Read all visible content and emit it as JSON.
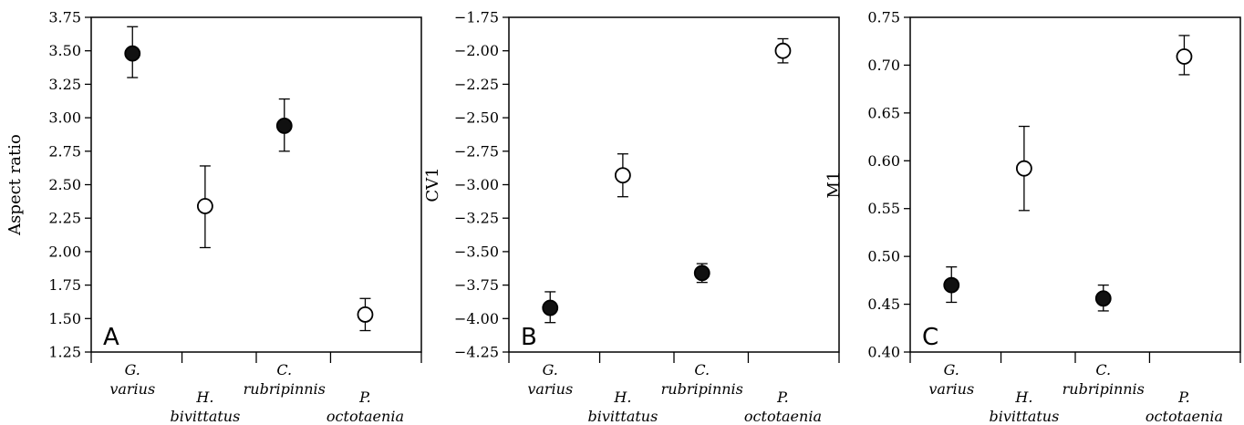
{
  "chart_data": [
    {
      "type": "scatter",
      "panel_label": "A",
      "ylabel": "Aspect ratio",
      "xlabel": "",
      "ylim": [
        1.25,
        3.75
      ],
      "yticks": [
        "1.25",
        "1.50",
        "1.75",
        "2.00",
        "2.25",
        "2.50",
        "2.75",
        "3.00",
        "3.25",
        "3.50",
        "3.75"
      ],
      "categories": [
        {
          "line1": "G.",
          "line2": "varius"
        },
        {
          "line1": "H.",
          "line2": "bivittatus"
        },
        {
          "line1": "C.",
          "line2": "rubripinnis"
        },
        {
          "line1": "P.",
          "line2": "octotaenia"
        }
      ],
      "points": [
        {
          "value": 3.48,
          "low": 3.3,
          "high": 3.68,
          "filled": true
        },
        {
          "value": 2.34,
          "low": 2.03,
          "high": 2.64,
          "filled": false
        },
        {
          "value": 2.94,
          "low": 2.75,
          "high": 3.14,
          "filled": true
        },
        {
          "value": 1.53,
          "low": 1.41,
          "high": 1.65,
          "filled": false
        }
      ]
    },
    {
      "type": "scatter",
      "panel_label": "B",
      "ylabel": "CV1",
      "xlabel": "",
      "ylim": [
        -4.25,
        -1.75
      ],
      "yticks": [
        "-4.25",
        "-4.00",
        "-3.75",
        "-3.50",
        "-3.25",
        "-3.00",
        "-2.75",
        "-2.50",
        "-2.25",
        "-2.00",
        "-1.75"
      ],
      "categories": [
        {
          "line1": "G.",
          "line2": "varius"
        },
        {
          "line1": "H.",
          "line2": "bivittatus"
        },
        {
          "line1": "C.",
          "line2": "rubripinnis"
        },
        {
          "line1": "P.",
          "line2": "octotaenia"
        }
      ],
      "points": [
        {
          "value": -3.92,
          "low": -4.03,
          "high": -3.8,
          "filled": true
        },
        {
          "value": -2.93,
          "low": -3.09,
          "high": -2.77,
          "filled": false
        },
        {
          "value": -3.66,
          "low": -3.73,
          "high": -3.59,
          "filled": true
        },
        {
          "value": -2.0,
          "low": -2.09,
          "high": -1.91,
          "filled": false
        }
      ]
    },
    {
      "type": "scatter",
      "panel_label": "C",
      "ylabel": "M1",
      "xlabel": "",
      "ylim": [
        0.4,
        0.75
      ],
      "yticks": [
        "0.40",
        "0.45",
        "0.50",
        "0.55",
        "0.60",
        "0.65",
        "0.70",
        "0.75"
      ],
      "categories": [
        {
          "line1": "G.",
          "line2": "varius"
        },
        {
          "line1": "H.",
          "line2": "bivittatus"
        },
        {
          "line1": "C.",
          "line2": "rubripinnis"
        },
        {
          "line1": "P.",
          "line2": "octotaenia"
        }
      ],
      "points": [
        {
          "value": 0.47,
          "low": 0.452,
          "high": 0.489,
          "filled": true
        },
        {
          "value": 0.592,
          "low": 0.548,
          "high": 0.636,
          "filled": false
        },
        {
          "value": 0.456,
          "low": 0.443,
          "high": 0.47,
          "filled": true
        },
        {
          "value": 0.709,
          "low": 0.69,
          "high": 0.731,
          "filled": false
        }
      ]
    }
  ]
}
